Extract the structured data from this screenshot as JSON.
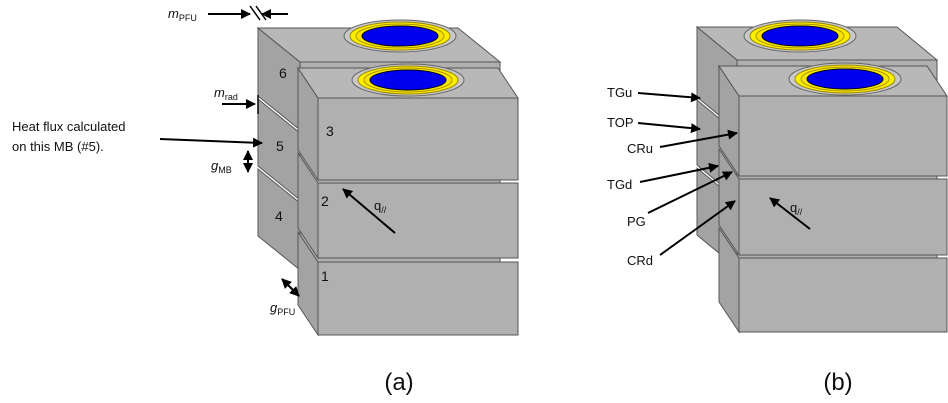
{
  "panel_a": {
    "caption": "(a)",
    "note": [
      "Heat flux calculated",
      "on this MB (#5)."
    ],
    "block_numbers": [
      "1",
      "2",
      "3",
      "4",
      "5",
      "6"
    ],
    "m_pfu": {
      "base": "m",
      "sub": "PFU"
    },
    "m_rad": {
      "base": "m",
      "sub": "rad"
    },
    "g_mb": {
      "base": "g",
      "sub": "MB"
    },
    "g_pfu": {
      "base": "g",
      "sub": "PFU"
    },
    "q": {
      "base": "q",
      "sub": "//"
    }
  },
  "panel_b": {
    "caption": "(b)",
    "labels": [
      "TGu",
      "TOP",
      "CRu",
      "TGd",
      "PG",
      "CRd"
    ],
    "q": {
      "base": "q",
      "sub": "//"
    }
  }
}
